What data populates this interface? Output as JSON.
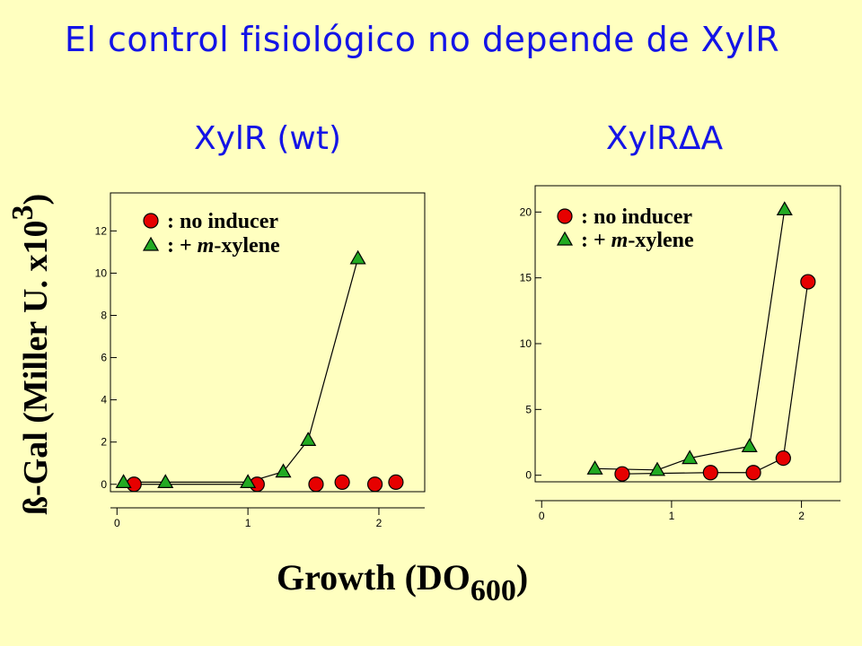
{
  "slide_title": "El control fisiológico no depende de XylR",
  "y_axis_label": "ß-Gal (Miller U. x10",
  "y_axis_label_exp": "3",
  "y_axis_label_close": ")",
  "x_axis_label": "Growth (DO",
  "x_axis_label_sub": "600",
  "x_axis_label_close": ")",
  "colors": {
    "background": "#FFFFC0",
    "title": "#1414E6",
    "no_inducer": "#E60000",
    "xylene": "#22AA22"
  },
  "chart_data": [
    {
      "type": "scatter",
      "title": "XylR (wt)",
      "xlabel": "Growth (DO600)",
      "ylabel": "ß-Gal (Miller U. x10^3)",
      "xlim": [
        -0.05,
        2.35
      ],
      "ylim": [
        -0.35,
        13.8
      ],
      "xticks": [
        0,
        1,
        2
      ],
      "xtick_labels": [
        "0",
        "1",
        "2"
      ],
      "yticks": [
        0,
        2,
        4,
        6,
        8,
        10,
        12
      ],
      "ytick_labels": [
        "0",
        "2",
        "4",
        "6",
        "8",
        "10",
        "12"
      ],
      "legend": {
        "placement": "top-left"
      },
      "series": [
        {
          "name": ": no inducer",
          "marker": "circle",
          "x": [
            0.13,
            1.07,
            1.52,
            1.72,
            1.97,
            2.13
          ],
          "y": [
            0.0,
            0.0,
            0.0,
            0.1,
            0.0,
            0.1
          ],
          "line_segments": [
            [
              0,
              1
            ]
          ]
        },
        {
          "name": ": + m-xylene",
          "name_prefix": ": + ",
          "name_italic": "m",
          "name_suffix": "-xylene",
          "marker": "triangle",
          "x": [
            0.05,
            0.37,
            1.0,
            1.27,
            1.46,
            1.84
          ],
          "y": [
            0.1,
            0.1,
            0.1,
            0.6,
            2.1,
            10.7
          ],
          "line_segments": [
            [
              0,
              1
            ],
            [
              1,
              2
            ],
            [
              2,
              3
            ],
            [
              3,
              4
            ],
            [
              4,
              5
            ]
          ]
        }
      ]
    },
    {
      "type": "scatter",
      "title": "XylRΔA",
      "xlabel": "Growth (DO600)",
      "ylabel": "ß-Gal (Miller U. x10^3)",
      "xlim": [
        -0.05,
        2.3
      ],
      "ylim": [
        -0.5,
        22.0
      ],
      "xticks": [
        0,
        1,
        2
      ],
      "xtick_labels": [
        "0",
        "1",
        "2"
      ],
      "yticks": [
        0,
        5,
        10,
        15,
        20
      ],
      "ytick_labels": [
        "0",
        "5",
        "10",
        "15",
        "20"
      ],
      "legend": {
        "placement": "top-left"
      },
      "series": [
        {
          "name": ": no inducer",
          "marker": "circle",
          "x": [
            0.62,
            1.3,
            1.63,
            1.86,
            2.05
          ],
          "y": [
            0.1,
            0.2,
            0.2,
            1.3,
            14.7
          ],
          "line_segments": [
            [
              0,
              1
            ],
            [
              1,
              2
            ],
            [
              2,
              3
            ],
            [
              3,
              4
            ]
          ]
        },
        {
          "name": ": + m-xylene",
          "name_prefix": ": + ",
          "name_italic": "m",
          "name_suffix": "-xylene",
          "marker": "triangle",
          "x": [
            0.41,
            0.89,
            1.14,
            1.6,
            1.87
          ],
          "y": [
            0.5,
            0.4,
            1.3,
            2.2,
            20.2
          ],
          "line_segments": [
            [
              0,
              1
            ],
            [
              1,
              2
            ],
            [
              2,
              3
            ],
            [
              3,
              4
            ]
          ]
        }
      ]
    }
  ]
}
